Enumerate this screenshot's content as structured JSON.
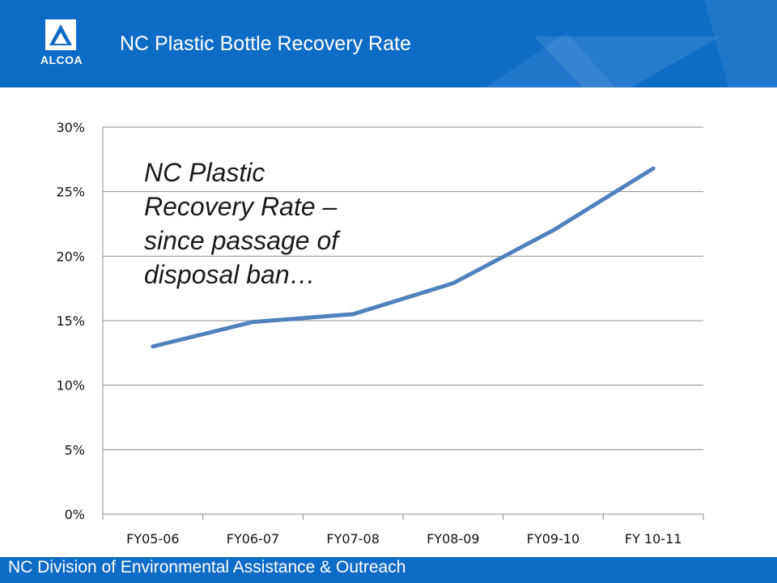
{
  "header": {
    "title": "NC Plastic Bottle Recovery Rate",
    "logo_text": "ALCOA",
    "background": "#0e6cc7"
  },
  "annotation": {
    "lines": [
      "NC Plastic",
      "Recovery Rate –",
      "since passage of",
      "disposal ban…"
    ]
  },
  "footer": {
    "text": "NC Division of Environmental Assistance & Outreach"
  },
  "chart_data": {
    "type": "line",
    "title": "",
    "xlabel": "",
    "ylabel": "",
    "categories": [
      "FY05-06",
      "FY06-07",
      "FY07-08",
      "FY08-09",
      "FY09-10",
      "FY 10-11"
    ],
    "series": [
      {
        "values": [
          0.13,
          0.149,
          0.155,
          0.179,
          0.22,
          0.268
        ],
        "color": "#4f81bd"
      }
    ],
    "ylim": [
      0,
      0.3
    ],
    "yticks": [
      0,
      0.05,
      0.1,
      0.15,
      0.2,
      0.25,
      0.3
    ],
    "ytick_labels": [
      "0%",
      "5%",
      "10%",
      "15%",
      "20%",
      "25%",
      "30%"
    ],
    "grid": true,
    "legend": "none"
  }
}
